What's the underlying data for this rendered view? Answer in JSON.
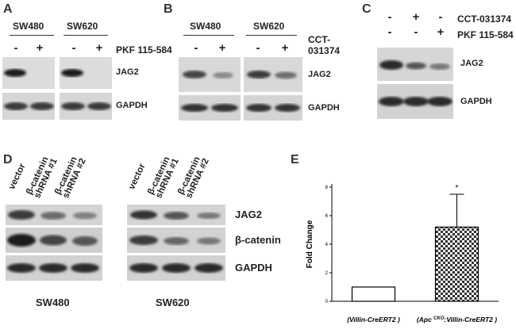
{
  "panels": {
    "A": {
      "letter": "A",
      "groups": [
        {
          "name": "SW480"
        },
        {
          "name": "SW620"
        }
      ],
      "treatment": "PKF 115-584",
      "signs": [
        "-",
        "+",
        "-",
        "+"
      ],
      "bands": [
        "JAG2",
        "GAPDH"
      ]
    },
    "B": {
      "letter": "B",
      "groups": [
        {
          "name": "SW480"
        },
        {
          "name": "SW620"
        }
      ],
      "treatment_line1": "CCT-",
      "treatment_line2": "031374",
      "signs": [
        "-",
        "+",
        "-",
        "+"
      ],
      "bands": [
        "JAG2",
        "GAPDH"
      ]
    },
    "C": {
      "letter": "C",
      "treatments": [
        {
          "name": "CCT-031374",
          "signs": [
            "-",
            "+",
            "-"
          ]
        },
        {
          "name": "PKF 115-584",
          "signs": [
            "-",
            "-",
            "+"
          ]
        }
      ],
      "bands": [
        "JAG2",
        "GAPDH"
      ]
    },
    "D": {
      "letter": "D",
      "lanes_left": [
        {
          "l1": "vector",
          "l2": ""
        },
        {
          "l1": "β-catenin",
          "l2": "shRNA #1"
        },
        {
          "l1": "β-catenin",
          "l2": "shRNA #2"
        }
      ],
      "lanes_right": [
        {
          "l1": "vector",
          "l2": ""
        },
        {
          "l1": "β-catenin",
          "l2": "shRNA #1"
        },
        {
          "l1": "β-catenin",
          "l2": "shRNA #2"
        }
      ],
      "bands": [
        "JAG2",
        "β-catenin",
        "GAPDH"
      ],
      "cell_lines": [
        "SW480",
        "SW620"
      ]
    },
    "E": {
      "letter": "E"
    }
  },
  "chart_data": {
    "type": "bar",
    "categories": [
      "(Villin-CreERT2 )",
      "(Apc CKO:Villin-CreERT2 )"
    ],
    "category_parts": [
      {
        "pre": "(Villin-CreERT2 )",
        "sup": "",
        "post": ""
      },
      {
        "pre": "(Apc ",
        "sup": "CKO",
        "post": ":Villin-CreERT2 )"
      }
    ],
    "series": [
      {
        "values": [
          1,
          5.2
        ],
        "errors": [
          0,
          2.3
        ]
      }
    ],
    "fills": [
      "open",
      "checker"
    ],
    "annotation": "*",
    "ylabel": "Fold Change",
    "ylim": [
      0,
      8
    ],
    "yticks": [
      0,
      2,
      4,
      6,
      8
    ]
  }
}
